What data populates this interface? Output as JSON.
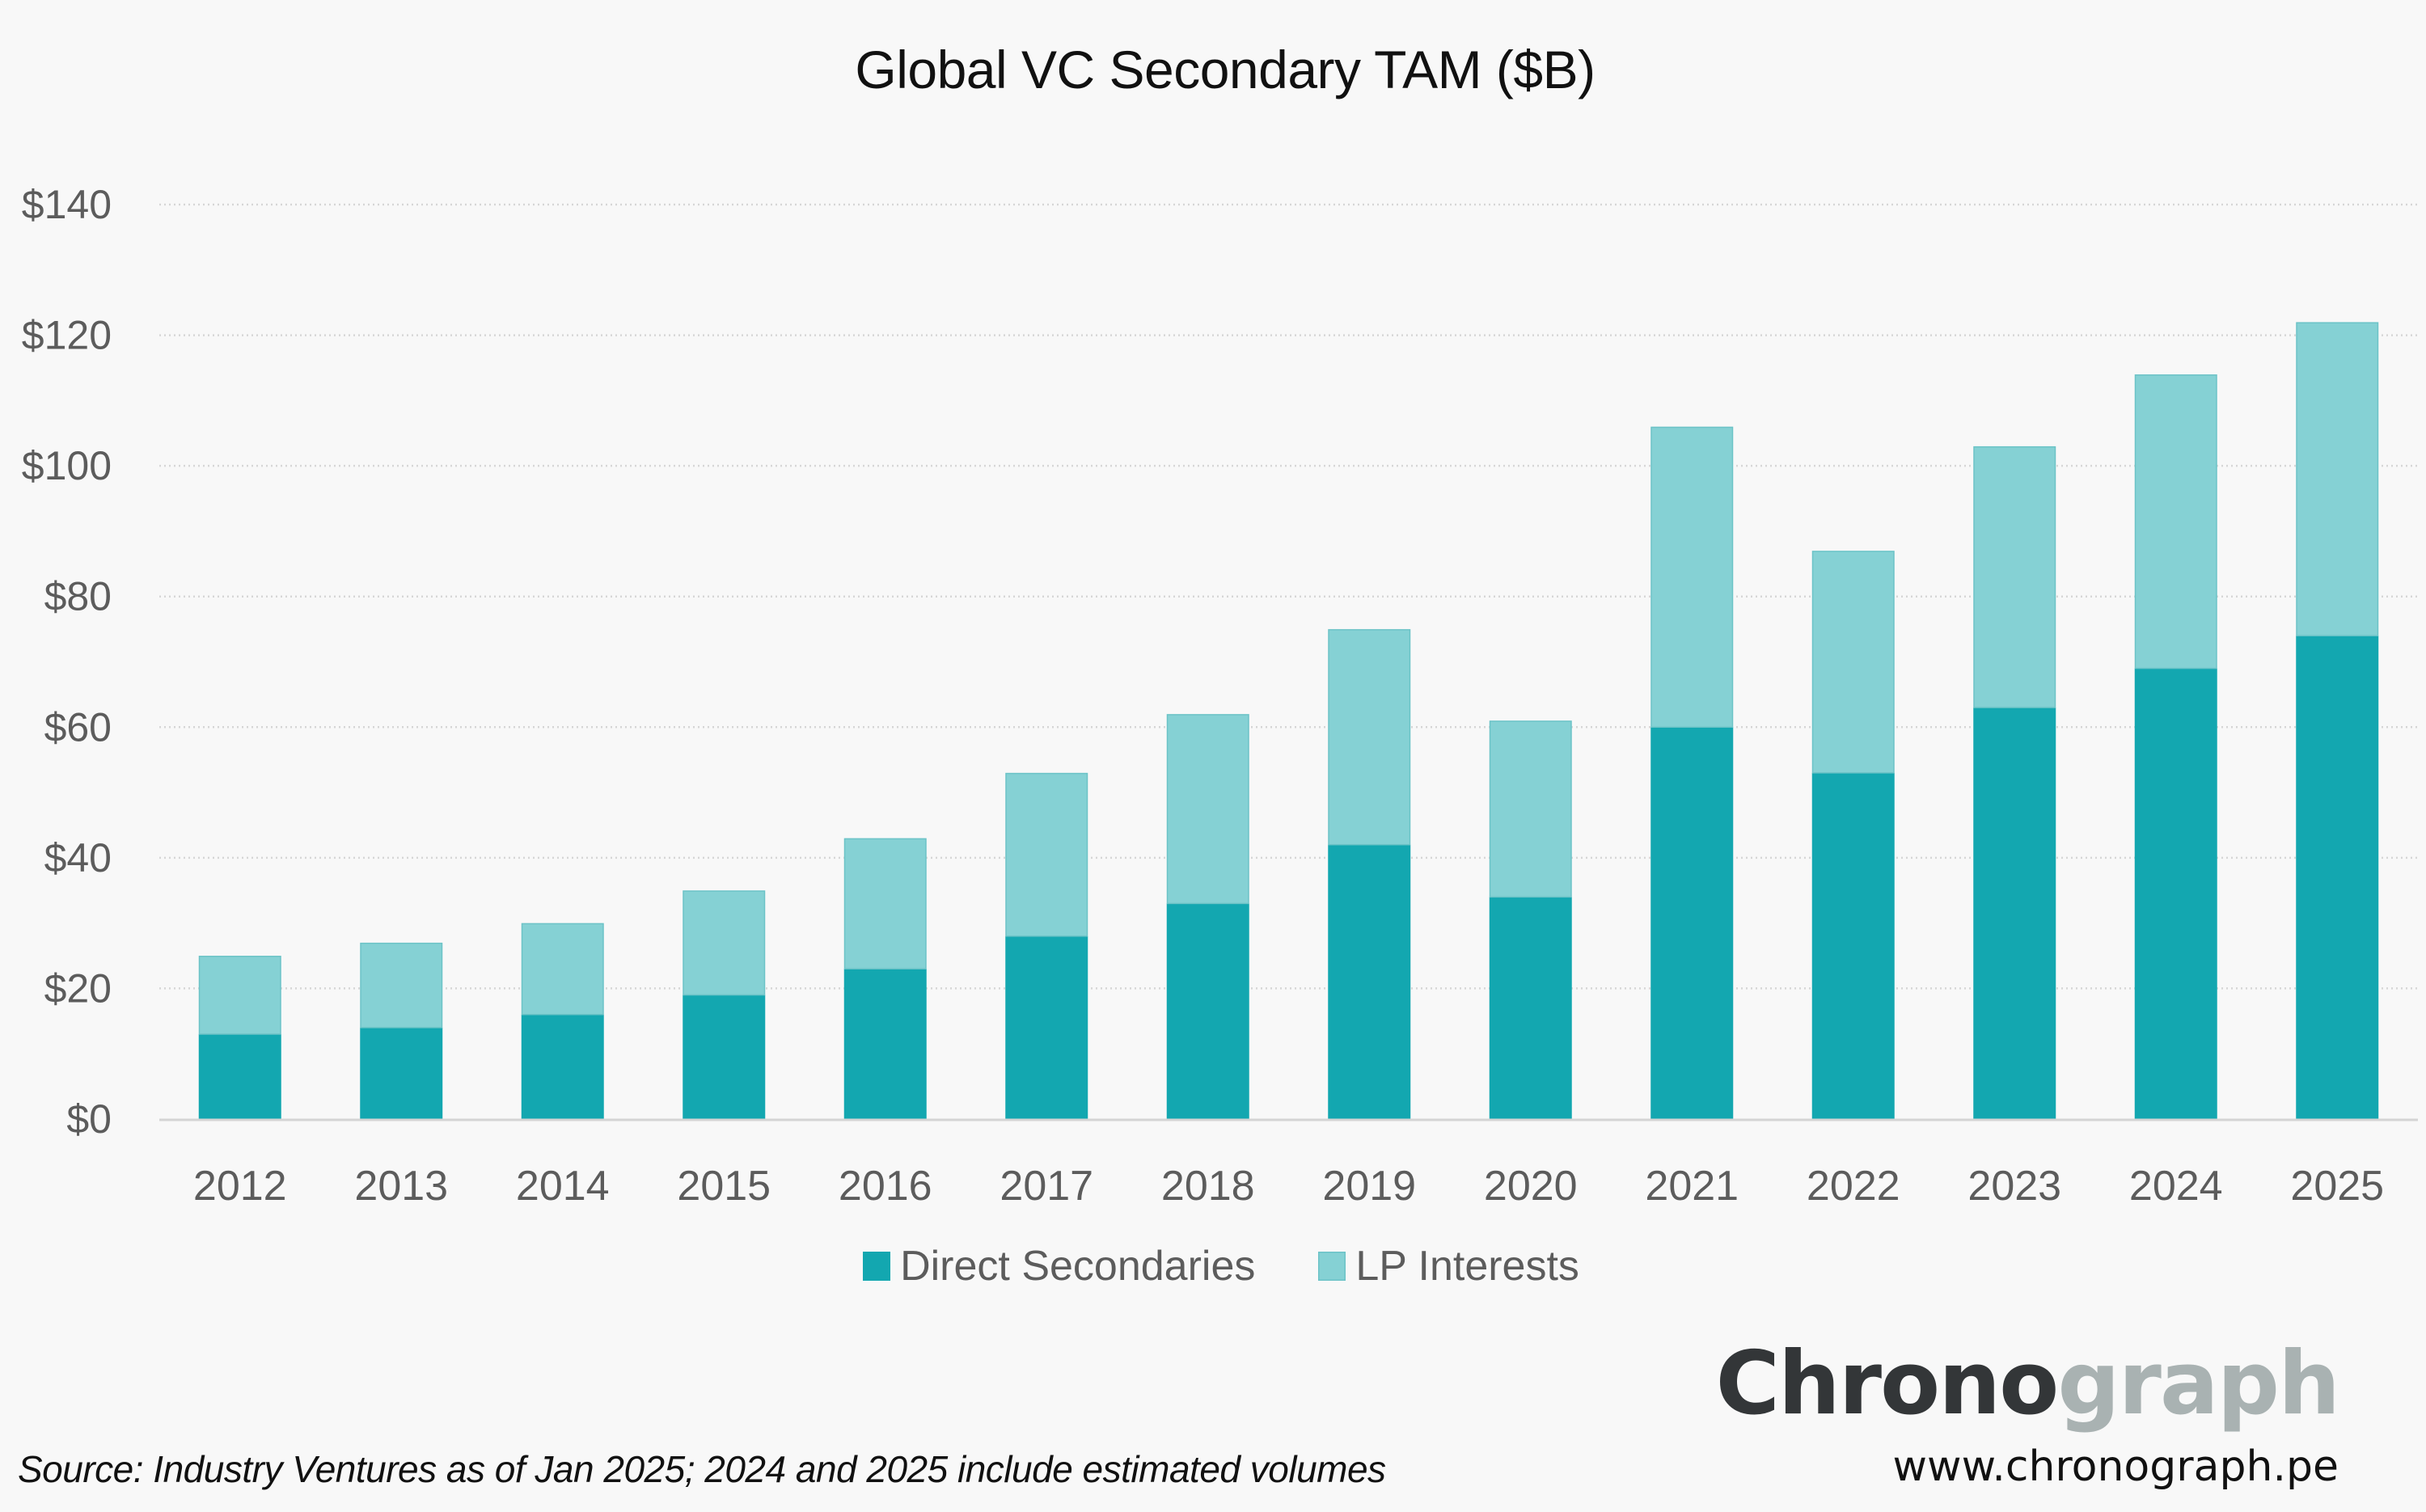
{
  "chart_data": {
    "type": "bar",
    "stacked": true,
    "title": "Global VC Secondary TAM ($B)",
    "xlabel": "",
    "ylabel": "",
    "ylim": [
      0,
      140
    ],
    "yticks": [
      0,
      20,
      40,
      60,
      80,
      100,
      120,
      140
    ],
    "ytick_labels": [
      "$0",
      "$20",
      "$40",
      "$60",
      "$80",
      "$100",
      "$120",
      "$140"
    ],
    "grid": true,
    "legend_position": "bottom-center",
    "categories": [
      "2012",
      "2013",
      "2014",
      "2015",
      "2016",
      "2017",
      "2018",
      "2019",
      "2020",
      "2021",
      "2022",
      "2023",
      "2024",
      "2025"
    ],
    "series": [
      {
        "name": "Direct Secondaries",
        "color": "#13a7b0",
        "values": [
          13,
          14,
          16,
          19,
          23,
          28,
          33,
          42,
          34,
          60,
          53,
          63,
          69,
          74
        ]
      },
      {
        "name": "LP Interests",
        "color": "#85d1d4",
        "values": [
          12,
          13,
          14,
          16,
          20,
          25,
          29,
          33,
          27,
          46,
          34,
          40,
          45,
          48
        ]
      }
    ],
    "totals": [
      25,
      27,
      30,
      35,
      43,
      53,
      62,
      75,
      61,
      106,
      87,
      103,
      114,
      122
    ]
  },
  "footer": {
    "source": "Source: Industry Ventures as of Jan 2025; 2024 and 2025 include estimated volumes"
  },
  "brand": {
    "name_dark": "Chrono",
    "name_light": "graph",
    "url": "www.chronograph.pe"
  },
  "colors": {
    "background": "#f8f8f8",
    "gridline": "#d6d6d6",
    "axis": "#d4d4d4"
  }
}
